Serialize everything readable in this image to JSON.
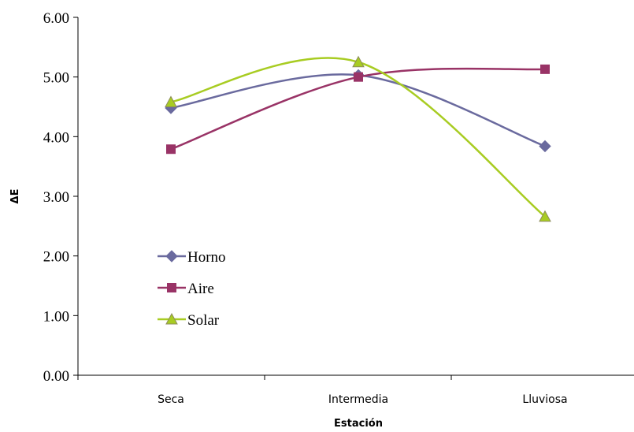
{
  "chart_data": {
    "type": "line",
    "title": "",
    "xlabel": "Estación",
    "ylabel": "ΔE",
    "categories": [
      "Seca",
      "Intermedia",
      "Lluviosa"
    ],
    "ylim": [
      0,
      6
    ],
    "y_ticks": [
      "0.00",
      "1.00",
      "2.00",
      "3.00",
      "4.00",
      "5.00",
      "6.00"
    ],
    "smoothed": true,
    "grid": false,
    "legend_position": "left-center",
    "series": [
      {
        "name": "Horno",
        "values": [
          4.48,
          5.03,
          3.84
        ],
        "color": "#6a6a9e",
        "marker": "diamond"
      },
      {
        "name": "Aire",
        "values": [
          3.79,
          5.0,
          5.13
        ],
        "color": "#993366",
        "marker": "square"
      },
      {
        "name": "Solar",
        "values": [
          4.58,
          5.25,
          2.66
        ],
        "color": "#a8cc22",
        "marker": "triangle"
      }
    ]
  }
}
